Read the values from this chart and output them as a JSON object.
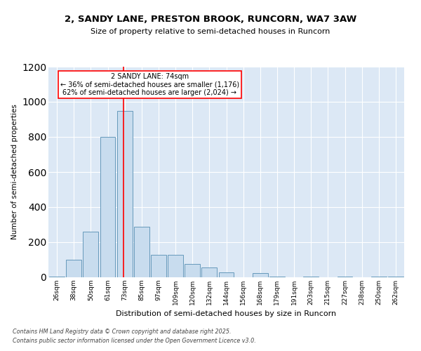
{
  "title_line1": "2, SANDY LANE, PRESTON BROOK, RUNCORN, WA7 3AW",
  "title_line2": "Size of property relative to semi-detached houses in Runcorn",
  "xlabel": "Distribution of semi-detached houses by size in Runcorn",
  "ylabel": "Number of semi-detached properties",
  "bar_color": "#c8dcee",
  "bar_edge_color": "#6699bb",
  "plot_bg_color": "#dce8f5",
  "categories": [
    "26sqm",
    "38sqm",
    "50sqm",
    "61sqm",
    "73sqm",
    "85sqm",
    "97sqm",
    "109sqm",
    "120sqm",
    "132sqm",
    "144sqm",
    "156sqm",
    "168sqm",
    "179sqm",
    "191sqm",
    "203sqm",
    "215sqm",
    "227sqm",
    "238sqm",
    "250sqm",
    "262sqm"
  ],
  "values": [
    5,
    100,
    260,
    800,
    950,
    290,
    130,
    130,
    75,
    55,
    30,
    2,
    25,
    5,
    2,
    5,
    2,
    5,
    2,
    5,
    5
  ],
  "ylim": [
    0,
    1200
  ],
  "yticks": [
    0,
    200,
    400,
    600,
    800,
    1000,
    1200
  ],
  "vline_bin_index": 4,
  "annotation_text_line1": "2 SANDY LANE: 74sqm",
  "annotation_text_line2": "← 36% of semi-detached houses are smaller (1,176)",
  "annotation_text_line3": "62% of semi-detached houses are larger (2,024) →",
  "footer_line1": "Contains HM Land Registry data © Crown copyright and database right 2025.",
  "footer_line2": "Contains public sector information licensed under the Open Government Licence v3.0."
}
